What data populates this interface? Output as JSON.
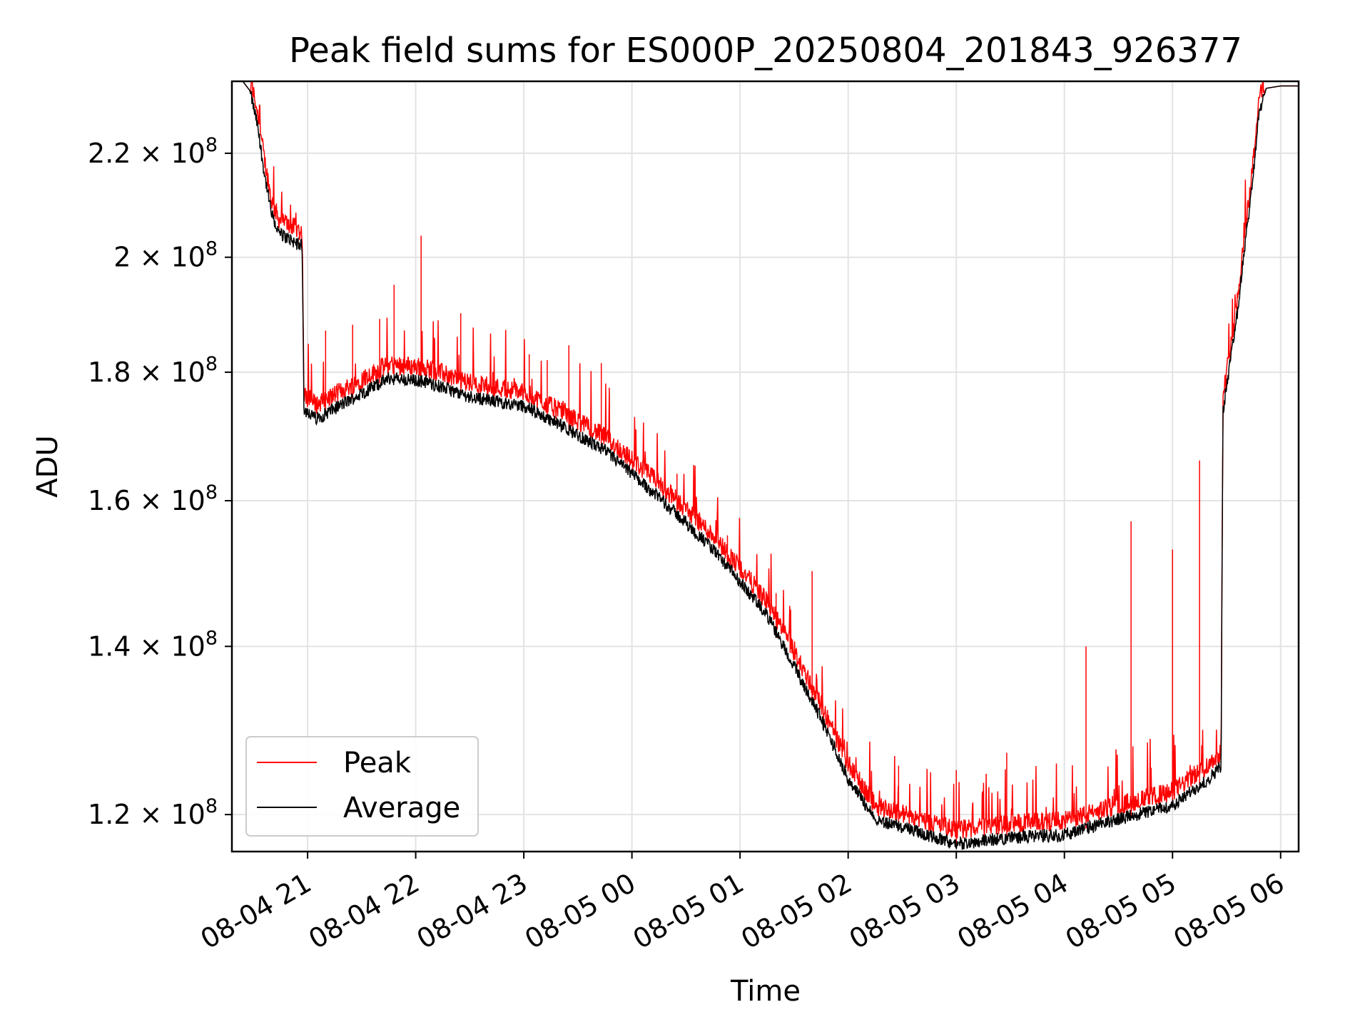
{
  "chart_data": {
    "type": "line",
    "title": "Peak field sums for ES000P_20250804_201843_926377",
    "xlabel": "Time",
    "ylabel": "ADU",
    "yscale": "log",
    "grid": true,
    "legend_position": "lower-left",
    "xlim": [
      "2025-08-04 20:18",
      "2025-08-05 06:10"
    ],
    "ylim": [
      116000000,
      235000000
    ],
    "x_ticks": [
      {
        "value": "2025-08-04 21:00",
        "label": "08-04 21"
      },
      {
        "value": "2025-08-04 22:00",
        "label": "08-04 22"
      },
      {
        "value": "2025-08-04 23:00",
        "label": "08-04 23"
      },
      {
        "value": "2025-08-05 00:00",
        "label": "08-05 00"
      },
      {
        "value": "2025-08-05 01:00",
        "label": "08-05 01"
      },
      {
        "value": "2025-08-05 02:00",
        "label": "08-05 02"
      },
      {
        "value": "2025-08-05 03:00",
        "label": "08-05 03"
      },
      {
        "value": "2025-08-05 04:00",
        "label": "08-05 04"
      },
      {
        "value": "2025-08-05 05:00",
        "label": "08-05 05"
      },
      {
        "value": "2025-08-05 06:00",
        "label": "08-05 06"
      }
    ],
    "y_ticks": [
      {
        "value": 120000000,
        "mantissa": "1.2",
        "exponent": "8"
      },
      {
        "value": 140000000,
        "mantissa": "1.4",
        "exponent": "8"
      },
      {
        "value": 160000000,
        "mantissa": "1.6",
        "exponent": "8"
      },
      {
        "value": 180000000,
        "mantissa": "1.8",
        "exponent": "8"
      },
      {
        "value": 200000000,
        "mantissa": "2",
        "exponent": "8"
      },
      {
        "value": 220000000,
        "mantissa": "2.2",
        "exponent": "8"
      }
    ],
    "series": [
      {
        "name": "Peak",
        "color": "#ff0000"
      },
      {
        "name": "Average",
        "color": "#000000"
      }
    ],
    "average_curve": [
      {
        "t": "2025-08-04 20:18",
        "v": 235000000
      },
      {
        "t": "2025-08-04 20:24",
        "v": 235000000
      },
      {
        "t": "2025-08-04 20:28",
        "v": 233000000
      },
      {
        "t": "2025-08-04 20:32",
        "v": 226000000
      },
      {
        "t": "2025-08-04 20:36",
        "v": 216000000
      },
      {
        "t": "2025-08-04 20:40",
        "v": 208000000
      },
      {
        "t": "2025-08-04 20:44",
        "v": 204500000
      },
      {
        "t": "2025-08-04 20:57",
        "v": 202000000
      },
      {
        "t": "2025-08-04 20:58",
        "v": 174000000
      },
      {
        "t": "2025-08-04 21:05",
        "v": 172500000
      },
      {
        "t": "2025-08-04 21:30",
        "v": 176500000
      },
      {
        "t": "2025-08-04 21:45",
        "v": 179000000
      },
      {
        "t": "2025-08-04 22:05",
        "v": 178500000
      },
      {
        "t": "2025-08-04 22:30",
        "v": 176000000
      },
      {
        "t": "2025-08-04 23:00",
        "v": 174500000
      },
      {
        "t": "2025-08-04 23:20",
        "v": 171500000
      },
      {
        "t": "2025-08-04 23:45",
        "v": 167500000
      },
      {
        "t": "2025-08-05 00:15",
        "v": 160500000
      },
      {
        "t": "2025-08-05 00:45",
        "v": 153000000
      },
      {
        "t": "2025-08-05 01:15",
        "v": 144000000
      },
      {
        "t": "2025-08-05 01:45",
        "v": 131000000
      },
      {
        "t": "2025-08-05 02:00",
        "v": 124000000
      },
      {
        "t": "2025-08-05 02:15",
        "v": 119500000
      },
      {
        "t": "2025-08-05 02:40",
        "v": 118000000
      },
      {
        "t": "2025-08-05 03:00",
        "v": 116800000
      },
      {
        "t": "2025-08-05 03:30",
        "v": 117500000
      },
      {
        "t": "2025-08-05 04:00",
        "v": 117800000
      },
      {
        "t": "2025-08-05 04:30",
        "v": 119500000
      },
      {
        "t": "2025-08-05 05:00",
        "v": 121000000
      },
      {
        "t": "2025-08-05 05:20",
        "v": 124000000
      },
      {
        "t": "2025-08-05 05:27",
        "v": 125500000
      },
      {
        "t": "2025-08-05 05:28",
        "v": 173500000
      },
      {
        "t": "2025-08-05 05:36",
        "v": 190000000
      },
      {
        "t": "2025-08-05 05:44",
        "v": 213000000
      },
      {
        "t": "2025-08-05 05:48",
        "v": 228000000
      },
      {
        "t": "2025-08-05 05:52",
        "v": 233500000
      },
      {
        "t": "2025-08-05 06:00",
        "v": 234000000
      },
      {
        "t": "2025-08-05 06:10",
        "v": 234000000
      }
    ],
    "peak_spikes": [
      {
        "t": "2025-08-04 21:10",
        "v": 187000000
      },
      {
        "t": "2025-08-04 21:25",
        "v": 188000000
      },
      {
        "t": "2025-08-04 21:40",
        "v": 189000000
      },
      {
        "t": "2025-08-04 21:48",
        "v": 195000000
      },
      {
        "t": "2025-08-04 22:03",
        "v": 204000000
      },
      {
        "t": "2025-08-04 22:25",
        "v": 190000000
      },
      {
        "t": "2025-08-04 23:03",
        "v": 183000000
      },
      {
        "t": "2025-08-04 23:13",
        "v": 182000000
      },
      {
        "t": "2025-08-04 23:25",
        "v": 184500000
      },
      {
        "t": "2025-08-04 23:43",
        "v": 181500000
      },
      {
        "t": "2025-08-05 00:25",
        "v": 164000000
      },
      {
        "t": "2025-08-05 00:53",
        "v": 155000000
      },
      {
        "t": "2025-08-05 01:20",
        "v": 147000000
      },
      {
        "t": "2025-08-05 01:40",
        "v": 150000000
      },
      {
        "t": "2025-08-05 02:28",
        "v": 125500000
      },
      {
        "t": "2025-08-05 03:00",
        "v": 125000000
      },
      {
        "t": "2025-08-05 03:28",
        "v": 127000000
      },
      {
        "t": "2025-08-05 04:12",
        "v": 140000000
      },
      {
        "t": "2025-08-05 04:37",
        "v": 157000000
      },
      {
        "t": "2025-08-05 05:00",
        "v": 153000000
      },
      {
        "t": "2025-08-05 05:15",
        "v": 166000000
      }
    ]
  }
}
